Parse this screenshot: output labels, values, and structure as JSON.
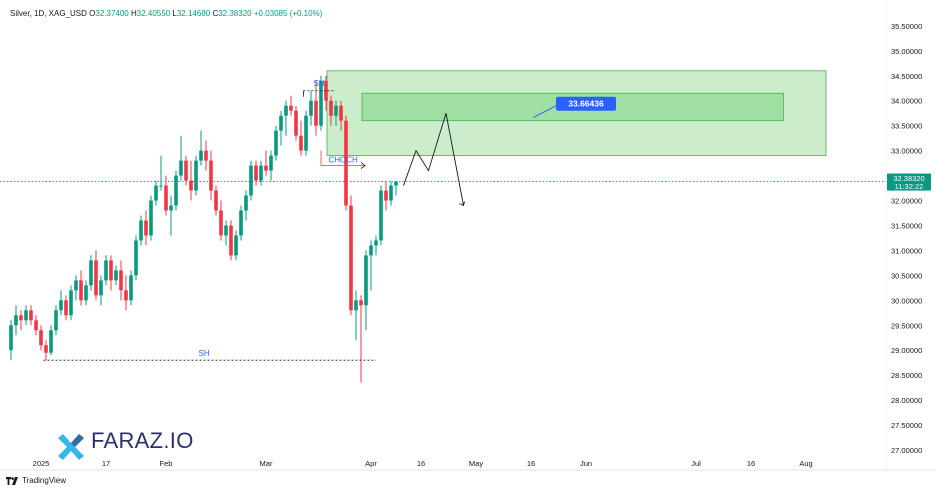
{
  "header": {
    "symbol": "Silver, 1D, XAG_USD",
    "open_label": "O",
    "open": "32.37400",
    "high_label": "H",
    "high": "32.40550",
    "low_label": "L",
    "low": "32.14680",
    "close_label": "C",
    "close": "32.38320",
    "change": "+0.03085 (+0.10%)"
  },
  "colors": {
    "up": "#089981",
    "down": "#f23645",
    "zone_fill": "#7ed37f",
    "price_tag": "#089981",
    "callout": "#2962ff",
    "logo_accent": "#36b5e8"
  },
  "price_tag": {
    "price": "32.38320",
    "countdown": "11:32:22"
  },
  "annotations": {
    "sh_top": "SH",
    "sh_bottom": "SH",
    "choch": "CHOCH",
    "zone_price": "33.66436"
  },
  "brand": {
    "name": "FARAZ.IO"
  },
  "footer": {
    "tradingview": "TradingView"
  },
  "chart_data": {
    "type": "candlestick",
    "y_axis": {
      "range": [
        26.8,
        35.8
      ],
      "ticks": [
        "35.50000",
        "35.00000",
        "34.50000",
        "34.00000",
        "33.50000",
        "33.00000",
        "32.50000",
        "32.00000",
        "31.50000",
        "31.00000",
        "30.50000",
        "30.00000",
        "29.50000",
        "29.00000",
        "28.50000",
        "28.00000",
        "27.50000",
        "27.00000"
      ]
    },
    "x_axis": {
      "ticks": [
        {
          "label": "2025",
          "i": 6
        },
        {
          "label": "17",
          "i": 19
        },
        {
          "label": "Feb",
          "i": 31
        },
        {
          "label": "Mar",
          "i": 51
        },
        {
          "label": "Apr",
          "i": 72
        },
        {
          "label": "16",
          "i": 82
        },
        {
          "label": "May",
          "i": 93
        },
        {
          "label": "16",
          "i": 104
        },
        {
          "label": "Jun",
          "i": 115
        },
        {
          "label": "Jul",
          "i": 137
        },
        {
          "label": "16",
          "i": 148
        },
        {
          "label": "Aug",
          "i": 159
        }
      ]
    },
    "candles": [
      [
        29.0,
        29.6,
        28.8,
        29.5
      ],
      [
        29.5,
        29.9,
        29.3,
        29.7
      ],
      [
        29.7,
        29.8,
        29.4,
        29.6
      ],
      [
        29.6,
        29.9,
        29.5,
        29.8
      ],
      [
        29.8,
        29.9,
        29.5,
        29.6
      ],
      [
        29.6,
        29.7,
        29.3,
        29.4
      ],
      [
        29.4,
        29.5,
        29.0,
        29.1
      ],
      [
        29.1,
        29.2,
        28.8,
        28.95
      ],
      [
        28.95,
        29.5,
        28.9,
        29.4
      ],
      [
        29.4,
        29.9,
        29.3,
        29.8
      ],
      [
        29.8,
        30.2,
        29.7,
        30.0
      ],
      [
        30.0,
        30.1,
        29.6,
        29.7
      ],
      [
        29.7,
        30.3,
        29.6,
        30.2
      ],
      [
        30.2,
        30.5,
        30.0,
        30.4
      ],
      [
        30.4,
        30.6,
        29.9,
        30.0
      ],
      [
        30.0,
        30.4,
        29.9,
        30.3
      ],
      [
        30.3,
        30.9,
        30.2,
        30.8
      ],
      [
        30.8,
        31.0,
        30.0,
        30.1
      ],
      [
        30.1,
        30.5,
        29.9,
        30.4
      ],
      [
        30.4,
        30.9,
        30.3,
        30.8
      ],
      [
        30.8,
        30.9,
        30.2,
        30.4
      ],
      [
        30.4,
        30.7,
        30.3,
        30.6
      ],
      [
        30.6,
        30.8,
        30.0,
        30.2
      ],
      [
        30.2,
        30.5,
        29.8,
        30.0
      ],
      [
        30.0,
        30.6,
        29.9,
        30.5
      ],
      [
        30.5,
        31.3,
        30.4,
        31.2
      ],
      [
        31.2,
        31.7,
        31.1,
        31.6
      ],
      [
        31.6,
        31.8,
        31.1,
        31.3
      ],
      [
        31.3,
        32.1,
        31.2,
        32.0
      ],
      [
        32.0,
        32.4,
        31.9,
        32.3
      ],
      [
        32.3,
        32.9,
        32.2,
        32.3
      ],
      [
        32.3,
        32.5,
        31.7,
        31.8
      ],
      [
        31.8,
        32.1,
        31.3,
        31.9
      ],
      [
        31.9,
        32.6,
        31.8,
        32.5
      ],
      [
        32.5,
        33.3,
        32.4,
        32.8
      ],
      [
        32.8,
        32.9,
        32.3,
        32.4
      ],
      [
        32.4,
        32.8,
        32.0,
        32.2
      ],
      [
        32.2,
        32.9,
        32.1,
        32.8
      ],
      [
        32.8,
        33.4,
        32.7,
        33.0
      ],
      [
        33.0,
        33.2,
        32.6,
        32.8
      ],
      [
        32.8,
        33.0,
        32.0,
        32.2
      ],
      [
        32.2,
        32.3,
        31.7,
        31.8
      ],
      [
        31.8,
        32.0,
        31.2,
        31.3
      ],
      [
        31.3,
        31.6,
        31.1,
        31.5
      ],
      [
        31.5,
        31.6,
        30.8,
        30.9
      ],
      [
        30.9,
        31.4,
        30.8,
        31.3
      ],
      [
        31.3,
        31.9,
        31.2,
        31.8
      ],
      [
        31.8,
        32.2,
        31.6,
        32.1
      ],
      [
        32.1,
        32.8,
        32.0,
        32.7
      ],
      [
        32.7,
        32.8,
        32.3,
        32.4
      ],
      [
        32.4,
        32.8,
        32.3,
        32.7
      ],
      [
        32.7,
        33.0,
        32.5,
        32.6
      ],
      [
        32.6,
        33.0,
        32.4,
        32.9
      ],
      [
        32.9,
        33.5,
        32.8,
        33.4
      ],
      [
        33.4,
        33.8,
        33.1,
        33.7
      ],
      [
        33.7,
        34.0,
        33.3,
        33.9
      ],
      [
        33.9,
        34.1,
        33.7,
        33.8
      ],
      [
        33.8,
        33.9,
        33.2,
        33.3
      ],
      [
        33.3,
        33.6,
        32.9,
        33.0
      ],
      [
        33.0,
        33.8,
        32.9,
        33.7
      ],
      [
        33.7,
        34.2,
        33.5,
        34.0
      ],
      [
        34.0,
        34.4,
        33.3,
        33.5
      ],
      [
        33.5,
        34.5,
        33.4,
        34.4
      ],
      [
        34.4,
        34.5,
        33.8,
        34.0
      ],
      [
        34.0,
        34.1,
        33.5,
        33.7
      ],
      [
        33.7,
        34.0,
        33.5,
        33.9
      ],
      [
        33.9,
        34.0,
        33.4,
        33.6
      ],
      [
        33.6,
        33.7,
        31.8,
        31.9
      ],
      [
        31.9,
        32.1,
        29.7,
        29.8
      ],
      [
        29.8,
        30.2,
        29.2,
        30.0
      ],
      [
        30.0,
        30.1,
        28.35,
        29.9
      ],
      [
        29.9,
        31.0,
        29.4,
        30.9
      ],
      [
        30.9,
        31.2,
        30.2,
        31.1
      ],
      [
        31.1,
        31.3,
        30.9,
        31.2
      ],
      [
        31.2,
        32.3,
        31.1,
        32.2
      ],
      [
        32.2,
        32.4,
        31.8,
        32.0
      ],
      [
        32.0,
        32.4,
        31.9,
        32.3
      ],
      [
        32.3,
        32.4,
        32.1,
        32.38
      ]
    ],
    "demand_zone": {
      "outer": [
        32.9,
        34.6
      ],
      "inner": [
        33.6,
        34.15
      ],
      "price": 33.66436
    },
    "structure_lines": {
      "sh_top": 34.2,
      "choch": 32.7,
      "sh_bottom": 28.8
    },
    "projection_path": [
      [
        78.5,
        32.3
      ],
      [
        81,
        33.0
      ],
      [
        83.5,
        32.6
      ],
      [
        87,
        33.75
      ],
      [
        90.5,
        31.9
      ]
    ]
  }
}
